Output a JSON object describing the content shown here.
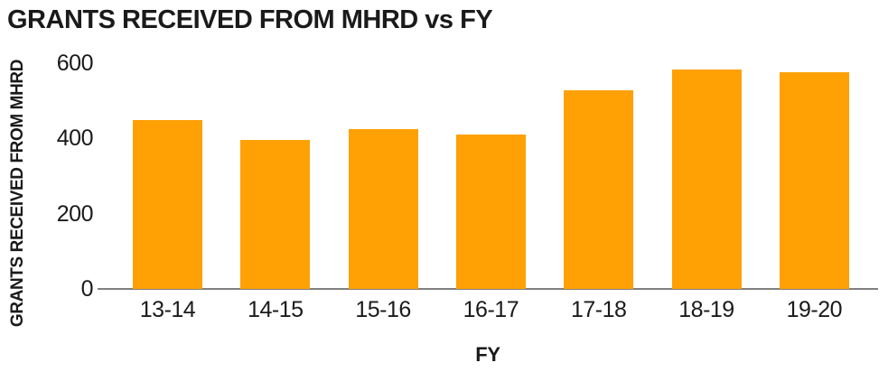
{
  "title": "GRANTS RECEIVED FROM MHRD vs FY",
  "chart_data": {
    "type": "bar",
    "title": "GRANTS RECEIVED FROM MHRD vs FY",
    "xlabel": "FY",
    "ylabel": "GRANTS RECEIVED FROM MHRD",
    "categories": [
      "13-14",
      "14-15",
      "15-16",
      "16-17",
      "17-18",
      "18-19",
      "19-20"
    ],
    "values": [
      449,
      396,
      424,
      410,
      529,
      584,
      577
    ],
    "ylim": [
      0,
      600
    ],
    "yticks": [
      0,
      200,
      400,
      600
    ],
    "grid": false,
    "legend": false,
    "colors": {
      "bar": "#ffa005",
      "axis_line": "#808080",
      "text": "#1a1a1a",
      "background": "#ffffff"
    }
  }
}
